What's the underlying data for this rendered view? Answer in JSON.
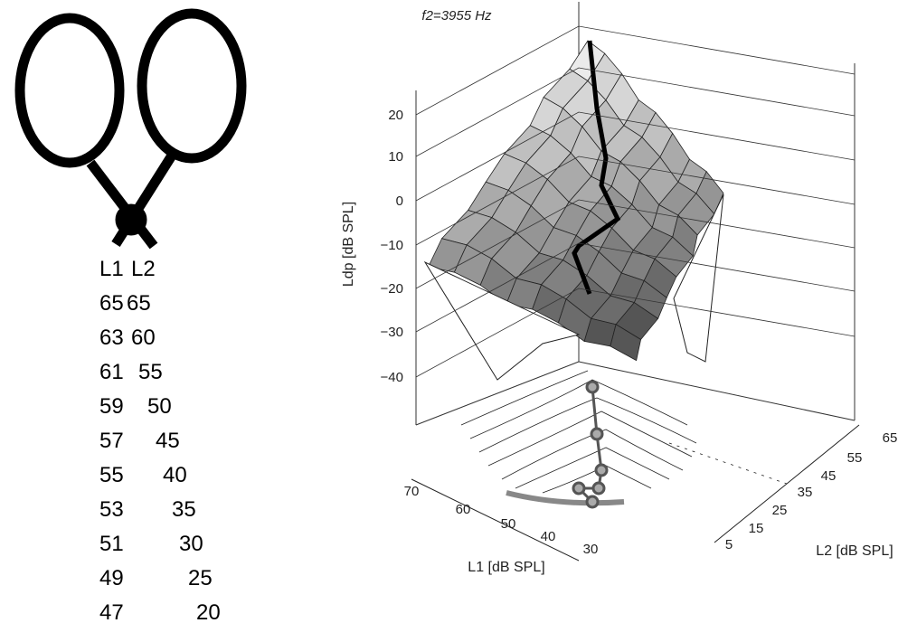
{
  "table": {
    "header": [
      "L1",
      "L2"
    ],
    "rows": [
      [
        65,
        65
      ],
      [
        63,
        60
      ],
      [
        61,
        55
      ],
      [
        59,
        50
      ],
      [
        57,
        45
      ],
      [
        55,
        40
      ],
      [
        53,
        35
      ],
      [
        51,
        30
      ],
      [
        49,
        25
      ],
      [
        47,
        20
      ]
    ]
  },
  "plot": {
    "title": "f2=3955 Hz",
    "z_label": "Ldp [dB SPL]",
    "z_ticks": [
      "20",
      "10",
      "0",
      "−10",
      "−20",
      "−30",
      "−40"
    ],
    "x_label": "L1 [dB SPL]",
    "x_ticks": [
      "70",
      "60",
      "50",
      "40",
      "30"
    ],
    "y_label": "L2 [dB SPL]",
    "y_ticks": [
      "5",
      "15",
      "25",
      "35",
      "45",
      "55",
      "65"
    ]
  }
}
